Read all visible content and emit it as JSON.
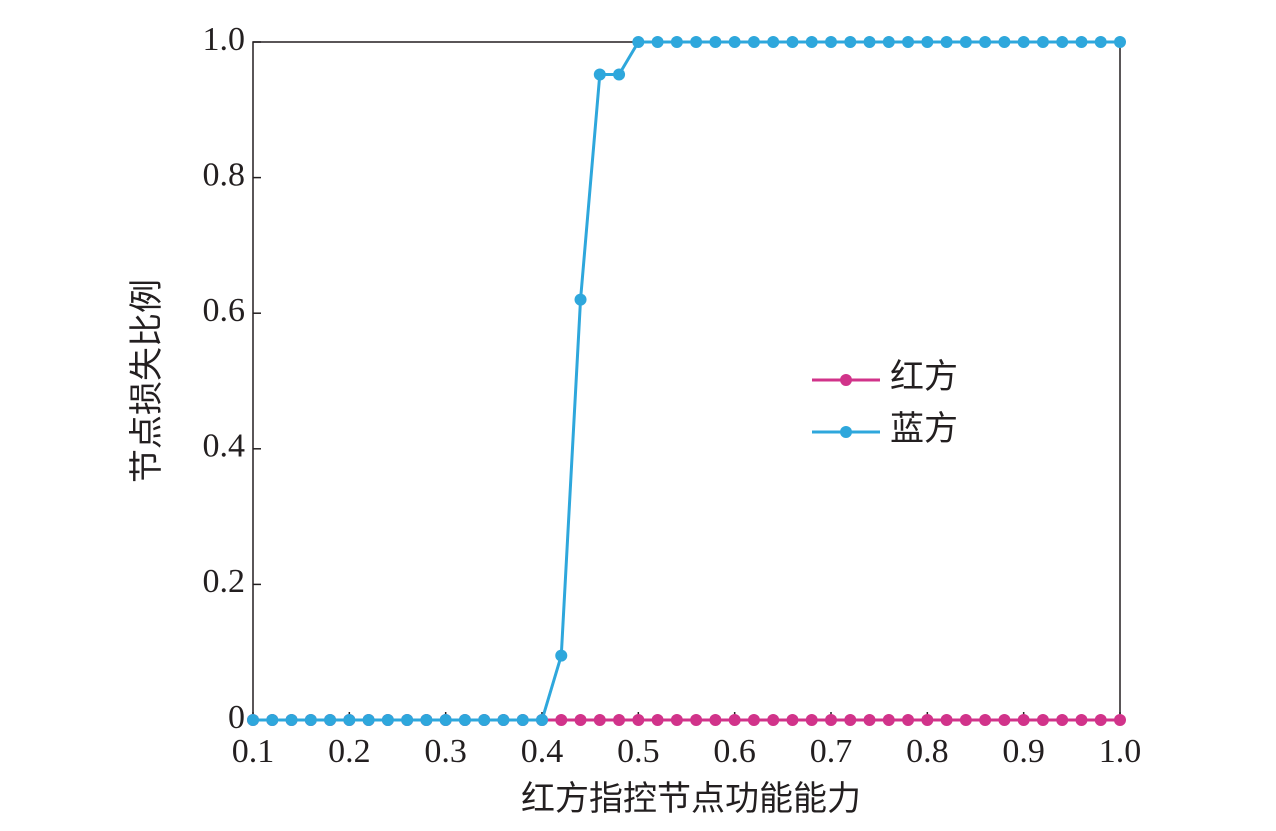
{
  "chart_data": {
    "type": "line",
    "x_label": "红方指控节点功能能力",
    "y_label": "节点损失比例",
    "x": [
      0.1,
      0.12,
      0.14,
      0.16,
      0.18,
      0.2,
      0.22,
      0.24,
      0.26,
      0.28,
      0.3,
      0.32,
      0.34,
      0.36,
      0.38,
      0.4,
      0.42,
      0.44,
      0.46,
      0.48,
      0.5,
      0.52,
      0.54,
      0.56,
      0.58,
      0.6,
      0.62,
      0.64,
      0.66,
      0.68,
      0.7,
      0.72,
      0.74,
      0.76,
      0.78,
      0.8,
      0.82,
      0.84,
      0.86,
      0.88,
      0.9,
      0.92,
      0.94,
      0.96,
      0.98,
      1
    ],
    "series": [
      {
        "name": "红方",
        "color": "#d1338a",
        "values": [
          0,
          0,
          0,
          0,
          0,
          0,
          0,
          0,
          0,
          0,
          0,
          0,
          0,
          0,
          0,
          0,
          0,
          0,
          0,
          0,
          0,
          0,
          0,
          0,
          0,
          0,
          0,
          0,
          0,
          0,
          0,
          0,
          0,
          0,
          0,
          0,
          0,
          0,
          0,
          0,
          0,
          0,
          0,
          0,
          0,
          0
        ]
      },
      {
        "name": "蓝方",
        "color": "#2ea7dc",
        "values": [
          0,
          0,
          0,
          0,
          0,
          0,
          0,
          0,
          0,
          0,
          0,
          0,
          0,
          0,
          0,
          0,
          0.095,
          0.62,
          0.952,
          0.952,
          1,
          1,
          1,
          1,
          1,
          1,
          1,
          1,
          1,
          1,
          1,
          1,
          1,
          1,
          1,
          1,
          1,
          1,
          1,
          1,
          1,
          1,
          1,
          1,
          1,
          1
        ]
      }
    ],
    "xlim": [
      0.1,
      1
    ],
    "ylim": [
      0,
      1
    ],
    "xticks": [
      0.1,
      0.2,
      0.3,
      0.4,
      0.5,
      0.6,
      0.7,
      0.8,
      0.9,
      {
        "value": 1,
        "label": "1.0"
      }
    ],
    "yticks": [
      0,
      0.2,
      0.4,
      0.6,
      0.8,
      {
        "value": 1,
        "label": "1.0"
      }
    ],
    "legend": "center right",
    "grid": false
  }
}
